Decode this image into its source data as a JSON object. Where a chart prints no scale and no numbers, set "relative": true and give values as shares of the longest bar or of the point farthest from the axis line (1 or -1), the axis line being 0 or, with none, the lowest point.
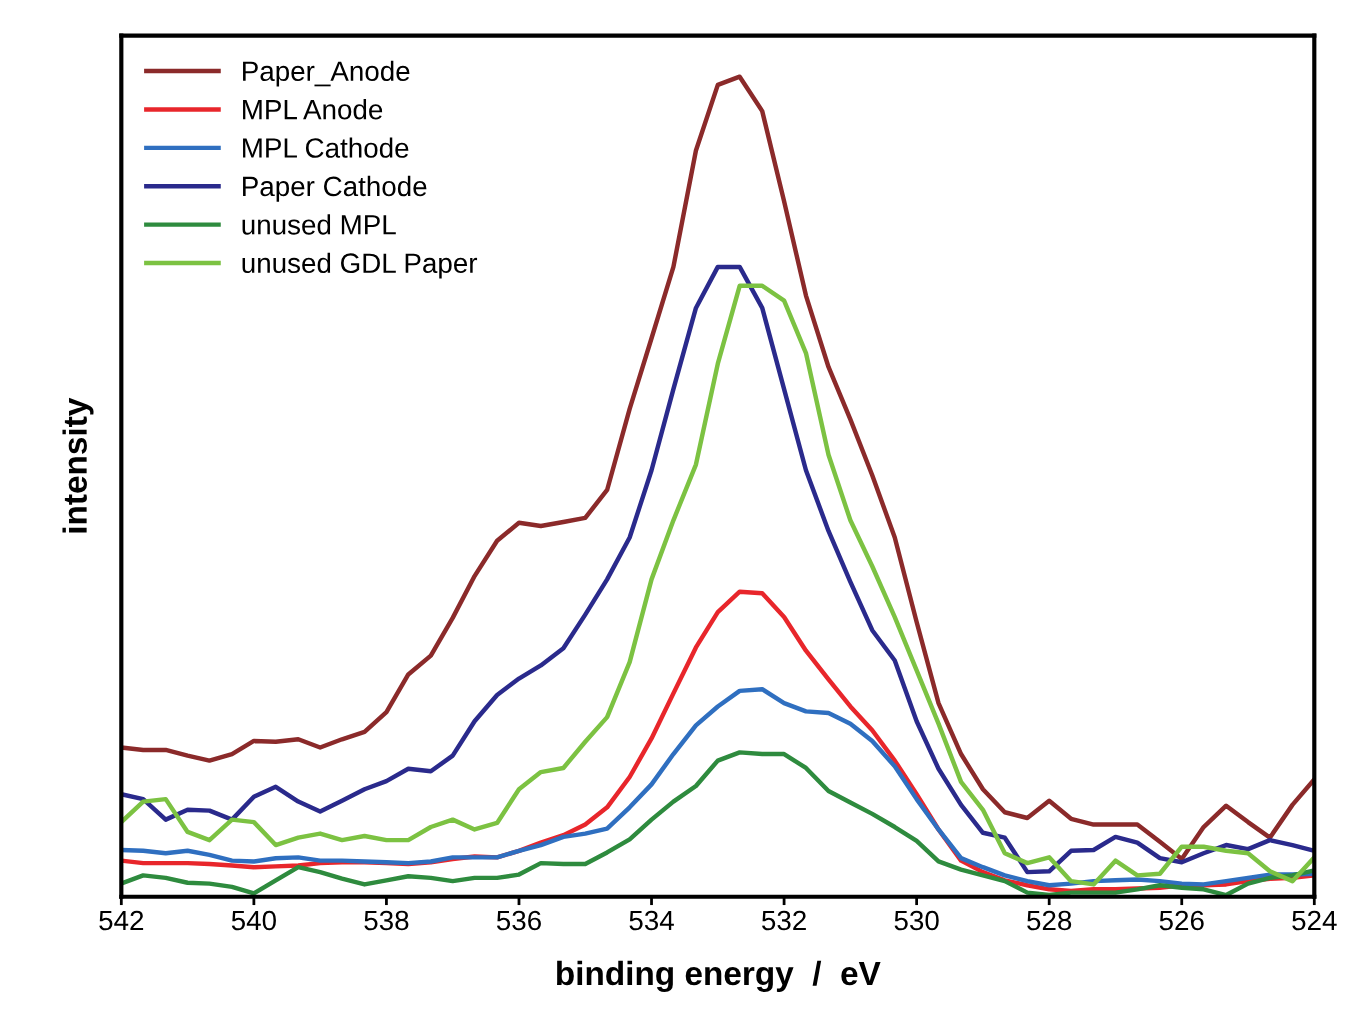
{
  "chart_data": {
    "type": "line",
    "relative": true,
    "xlabel": "binding energy  /  eV",
    "ylabel": "intensity",
    "xlim": [
      542,
      524
    ],
    "xticks": [
      542,
      540,
      538,
      536,
      534,
      532,
      530,
      528,
      526,
      524
    ],
    "grid": false,
    "legend": "top left",
    "marker": "none",
    "line_style": "solid",
    "x": [
      542,
      541.67,
      541.33,
      541,
      540.67,
      540.33,
      540,
      539.67,
      539.33,
      539,
      538.67,
      538.33,
      538,
      537.67,
      537.33,
      537,
      536.67,
      536.33,
      536,
      535.67,
      535.33,
      535,
      534.67,
      534.33,
      534,
      533.67,
      533.33,
      533,
      532.67,
      532.33,
      532,
      531.67,
      531.33,
      531,
      530.67,
      530.33,
      530,
      529.67,
      529.33,
      529,
      528.67,
      528.33,
      528,
      527.67,
      527.33,
      527,
      526.67,
      526.33,
      526,
      525.67,
      525.33,
      525,
      524.67,
      524.33,
      524
    ],
    "series": [
      {
        "name": "Paper_Anode",
        "color": "#8b2a2a",
        "values": [
          0.182,
          0.179,
          0.179,
          0.172,
          0.166,
          0.174,
          0.19,
          0.189,
          0.192,
          0.182,
          0.192,
          0.201,
          0.225,
          0.271,
          0.294,
          0.34,
          0.391,
          0.434,
          0.456,
          0.452,
          0.457,
          0.462,
          0.496,
          0.595,
          0.681,
          0.768,
          0.91,
          0.99,
          1.0,
          0.958,
          0.848,
          0.733,
          0.646,
          0.582,
          0.514,
          0.438,
          0.335,
          0.236,
          0.174,
          0.131,
          0.103,
          0.096,
          0.117,
          0.095,
          0.088,
          0.088,
          0.088,
          0.067,
          0.046,
          0.085,
          0.111,
          0.091,
          0.072,
          0.112,
          0.143
        ]
      },
      {
        "name": "MPL Anode",
        "color": "#e8262b",
        "values": [
          0.044,
          0.041,
          0.041,
          0.041,
          0.04,
          0.038,
          0.036,
          0.037,
          0.038,
          0.041,
          0.042,
          0.042,
          0.041,
          0.04,
          0.042,
          0.046,
          0.049,
          0.048,
          0.056,
          0.066,
          0.075,
          0.088,
          0.109,
          0.146,
          0.193,
          0.248,
          0.304,
          0.347,
          0.372,
          0.37,
          0.341,
          0.3,
          0.265,
          0.232,
          0.203,
          0.166,
          0.125,
          0.082,
          0.044,
          0.03,
          0.02,
          0.014,
          0.009,
          0.007,
          0.009,
          0.009,
          0.01,
          0.011,
          0.014,
          0.014,
          0.015,
          0.019,
          0.022,
          0.023,
          0.026
        ]
      },
      {
        "name": "MPL Cathode",
        "color": "#2f6fc0",
        "values": [
          0.057,
          0.056,
          0.053,
          0.056,
          0.051,
          0.044,
          0.043,
          0.047,
          0.048,
          0.044,
          0.044,
          0.043,
          0.042,
          0.041,
          0.043,
          0.048,
          0.048,
          0.048,
          0.056,
          0.063,
          0.073,
          0.077,
          0.083,
          0.109,
          0.137,
          0.174,
          0.209,
          0.232,
          0.251,
          0.253,
          0.236,
          0.226,
          0.224,
          0.211,
          0.19,
          0.159,
          0.119,
          0.082,
          0.047,
          0.036,
          0.026,
          0.019,
          0.014,
          0.016,
          0.019,
          0.02,
          0.021,
          0.019,
          0.016,
          0.015,
          0.019,
          0.023,
          0.027,
          0.027,
          0.028
        ]
      },
      {
        "name": "Paper Cathode",
        "color": "#2a2a8c",
        "values": [
          0.125,
          0.119,
          0.094,
          0.106,
          0.105,
          0.094,
          0.122,
          0.134,
          0.116,
          0.104,
          0.117,
          0.131,
          0.141,
          0.156,
          0.153,
          0.172,
          0.214,
          0.246,
          0.266,
          0.282,
          0.303,
          0.344,
          0.387,
          0.438,
          0.52,
          0.619,
          0.718,
          0.768,
          0.768,
          0.718,
          0.619,
          0.52,
          0.446,
          0.384,
          0.325,
          0.288,
          0.214,
          0.156,
          0.112,
          0.078,
          0.072,
          0.03,
          0.031,
          0.056,
          0.057,
          0.073,
          0.066,
          0.047,
          0.042,
          0.053,
          0.063,
          0.058,
          0.069,
          0.063,
          0.056
        ]
      },
      {
        "name": "unused MPL",
        "color": "#2e8b3e",
        "values": [
          0.016,
          0.026,
          0.023,
          0.017,
          0.016,
          0.012,
          0.004,
          0.02,
          0.036,
          0.03,
          0.022,
          0.015,
          0.02,
          0.025,
          0.023,
          0.019,
          0.023,
          0.023,
          0.027,
          0.041,
          0.04,
          0.04,
          0.054,
          0.07,
          0.094,
          0.116,
          0.135,
          0.166,
          0.176,
          0.174,
          0.174,
          0.157,
          0.129,
          0.115,
          0.101,
          0.085,
          0.068,
          0.043,
          0.033,
          0.026,
          0.019,
          0.005,
          0.002,
          0.005,
          0.005,
          0.005,
          0.009,
          0.014,
          0.011,
          0.009,
          0.002,
          0.016,
          0.023,
          0.026,
          0.032
        ]
      },
      {
        "name": "unused GDL Paper",
        "color": "#7cc242",
        "values": [
          0.091,
          0.116,
          0.119,
          0.079,
          0.069,
          0.094,
          0.091,
          0.063,
          0.072,
          0.077,
          0.069,
          0.074,
          0.069,
          0.069,
          0.085,
          0.094,
          0.082,
          0.09,
          0.131,
          0.152,
          0.157,
          0.189,
          0.219,
          0.286,
          0.387,
          0.459,
          0.527,
          0.65,
          0.745,
          0.745,
          0.727,
          0.663,
          0.539,
          0.459,
          0.403,
          0.341,
          0.276,
          0.211,
          0.14,
          0.106,
          0.053,
          0.041,
          0.048,
          0.019,
          0.015,
          0.044,
          0.026,
          0.028,
          0.061,
          0.061,
          0.056,
          0.053,
          0.031,
          0.019,
          0.048
        ]
      }
    ]
  }
}
